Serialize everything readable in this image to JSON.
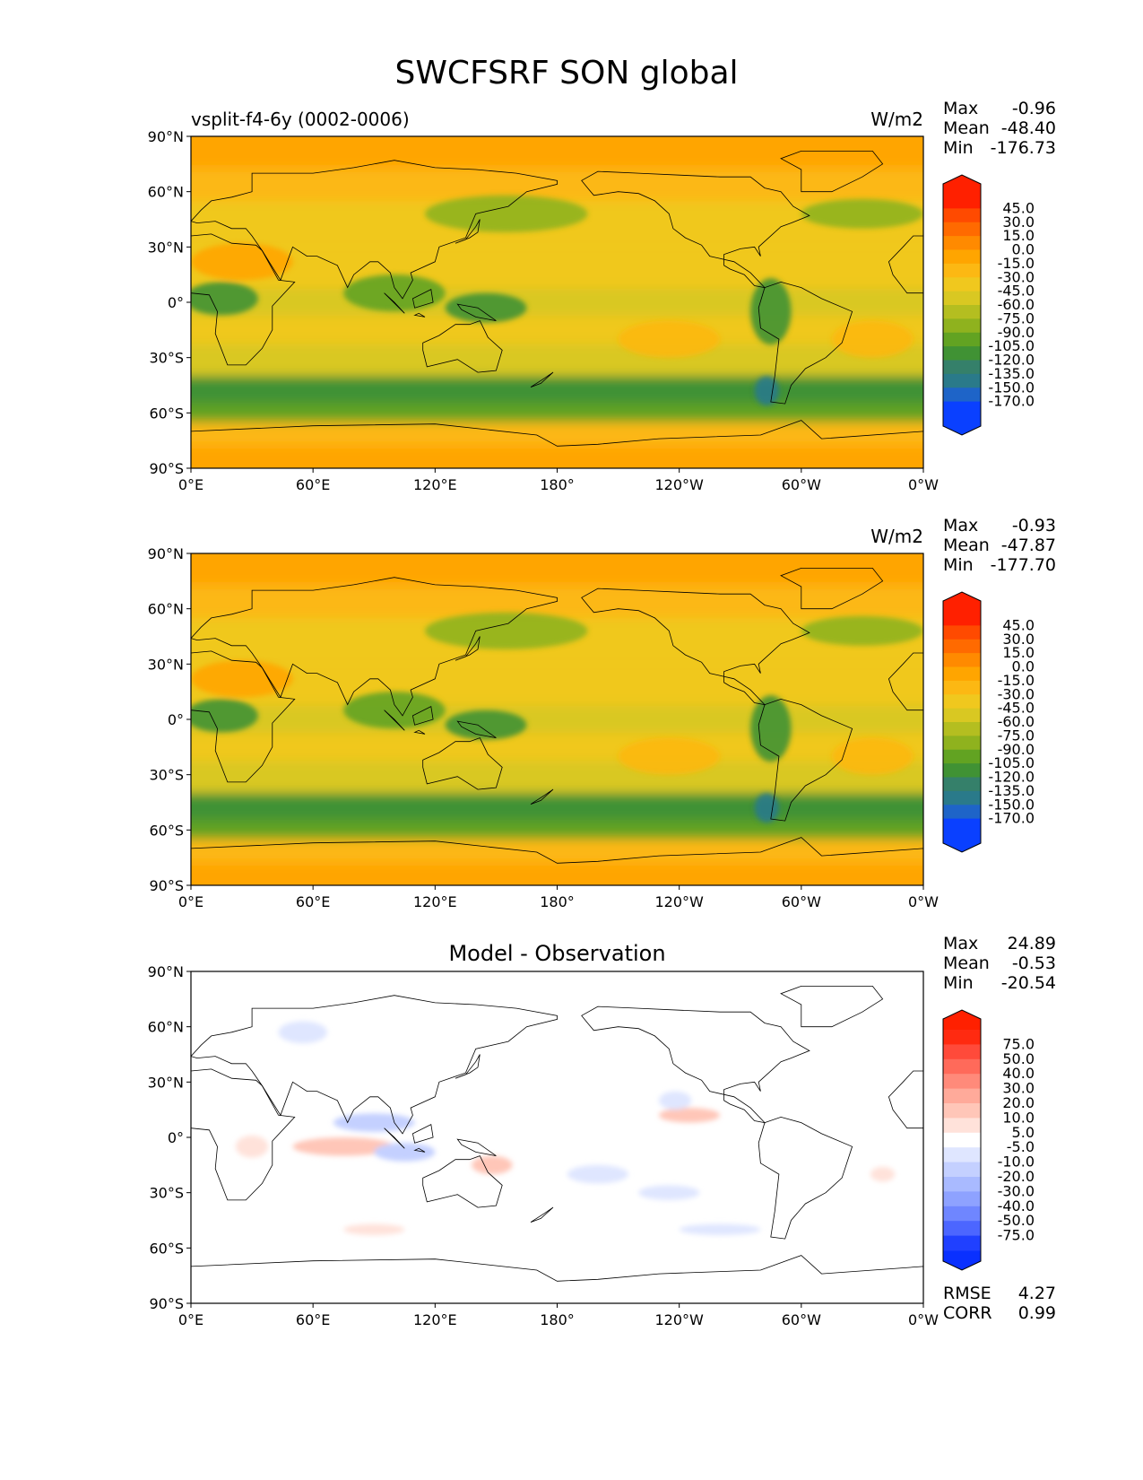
{
  "suptitle": "SWCFSRF SON global",
  "x_ticks": [
    "0°E",
    "60°E",
    "120°E",
    "180°",
    "120°W",
    "60°W",
    "0°W"
  ],
  "y_ticks": [
    "90°N",
    "60°N",
    "30°N",
    "0°",
    "30°S",
    "60°S",
    "90°S"
  ],
  "panels": [
    {
      "title_left": "vsplit-f4-6y (0002-0006)",
      "title_center": "",
      "units": "W/m2",
      "stats": [
        {
          "label": "Max",
          "value": "-0.96"
        },
        {
          "label": "Mean",
          "value": "-48.40"
        },
        {
          "label": "Min",
          "value": "-176.73"
        }
      ],
      "colorbar_labels": [
        "45.0",
        "30.0",
        "15.0",
        "0.0",
        "-15.0",
        "-30.0",
        "-45.0",
        "-60.0",
        "-75.0",
        "-90.0",
        "-105.0",
        "-120.0",
        "-135.0",
        "-150.0",
        "-170.0"
      ],
      "colorbar_colors": [
        "#ff2000",
        "#ff4a00",
        "#ff6a00",
        "#ff8a00",
        "#ffa500",
        "#fcb813",
        "#f0c81e",
        "#d9c822",
        "#b4be20",
        "#8fb21e",
        "#62a322",
        "#409234",
        "#35806a",
        "#2a7a8a",
        "#1e64c8",
        "#0a40ff"
      ],
      "extend_colors": {
        "top": "#ff2000",
        "bottom": "#0a40ff"
      }
    },
    {
      "title_left": "",
      "title_center": "",
      "units": "W/m2",
      "stats": [
        {
          "label": "Max",
          "value": "-0.93"
        },
        {
          "label": "Mean",
          "value": "-47.87"
        },
        {
          "label": "Min",
          "value": "-177.70"
        }
      ],
      "colorbar_labels": [
        "45.0",
        "30.0",
        "15.0",
        "0.0",
        "-15.0",
        "-30.0",
        "-45.0",
        "-60.0",
        "-75.0",
        "-90.0",
        "-105.0",
        "-120.0",
        "-135.0",
        "-150.0",
        "-170.0"
      ],
      "colorbar_colors": [
        "#ff2000",
        "#ff4a00",
        "#ff6a00",
        "#ff8a00",
        "#ffa500",
        "#fcb813",
        "#f0c81e",
        "#d9c822",
        "#b4be20",
        "#8fb21e",
        "#62a322",
        "#409234",
        "#35806a",
        "#2a7a8a",
        "#1e64c8",
        "#0a40ff"
      ],
      "extend_colors": {
        "top": "#ff2000",
        "bottom": "#0a40ff"
      }
    },
    {
      "title_left": "",
      "title_center": "Model - Observation",
      "units": "",
      "stats": [
        {
          "label": "Max",
          "value": "24.89"
        },
        {
          "label": "Mean",
          "value": "-0.53"
        },
        {
          "label": "Min",
          "value": "-20.54"
        }
      ],
      "extra_stats": [
        {
          "label": "RMSE",
          "value": "4.27"
        },
        {
          "label": "CORR",
          "value": "0.99"
        }
      ],
      "colorbar_labels": [
        "75.0",
        "50.0",
        "40.0",
        "30.0",
        "20.0",
        "10.0",
        "5.0",
        "-5.0",
        "-10.0",
        "-20.0",
        "-30.0",
        "-40.0",
        "-50.0",
        "-75.0"
      ],
      "colorbar_colors": [
        "#ff2a10",
        "#ff4a3a",
        "#ff6a5a",
        "#ff8a7a",
        "#ffaa9a",
        "#ffc6b8",
        "#ffe2da",
        "#ffffff",
        "#dfe6ff",
        "#c4d0ff",
        "#a9baff",
        "#8ea2ff",
        "#6f86ff",
        "#4c66ff",
        "#2040ff"
      ],
      "extend_colors": {
        "top": "#ff2000",
        "bottom": "#0a30ff"
      }
    }
  ],
  "chart_data": [
    {
      "type": "heatmap",
      "subtype": "global lat-lon filled contour map",
      "title": "vsplit-f4-6y (0002-0006)",
      "units": "W/m2",
      "xlim": [
        0,
        360
      ],
      "ylim": [
        -90,
        90
      ],
      "stats": {
        "max": -0.96,
        "mean": -48.4,
        "min": -176.73
      },
      "contour_levels": [
        -170,
        -150,
        -135,
        -120,
        -105,
        -90,
        -75,
        -60,
        -45,
        -30,
        -15,
        0,
        15,
        30,
        45
      ],
      "lat_band_values": [
        {
          "lat": 80,
          "value": -10
        },
        {
          "lat": 65,
          "value": -25
        },
        {
          "lat": 45,
          "value": -40
        },
        {
          "lat": 15,
          "value": -45
        },
        {
          "lat": 0,
          "value": -60
        },
        {
          "lat": -15,
          "value": -45
        },
        {
          "lat": -30,
          "value": -55
        },
        {
          "lat": -50,
          "value": -110
        },
        {
          "lat": -60,
          "value": -105
        },
        {
          "lat": -70,
          "value": -20
        },
        {
          "lat": -85,
          "value": -5
        }
      ]
    },
    {
      "type": "heatmap",
      "subtype": "global lat-lon filled contour map",
      "title": "",
      "units": "W/m2",
      "xlim": [
        0,
        360
      ],
      "ylim": [
        -90,
        90
      ],
      "stats": {
        "max": -0.93,
        "mean": -47.87,
        "min": -177.7
      },
      "contour_levels": [
        -170,
        -150,
        -135,
        -120,
        -105,
        -90,
        -75,
        -60,
        -45,
        -30,
        -15,
        0,
        15,
        30,
        45
      ],
      "lat_band_values": [
        {
          "lat": 80,
          "value": -10
        },
        {
          "lat": 65,
          "value": -25
        },
        {
          "lat": 45,
          "value": -40
        },
        {
          "lat": 15,
          "value": -45
        },
        {
          "lat": 0,
          "value": -60
        },
        {
          "lat": -15,
          "value": -45
        },
        {
          "lat": -30,
          "value": -55
        },
        {
          "lat": -50,
          "value": -110
        },
        {
          "lat": -60,
          "value": -100
        },
        {
          "lat": -70,
          "value": -20
        },
        {
          "lat": -85,
          "value": -5
        }
      ]
    },
    {
      "type": "heatmap",
      "subtype": "global lat-lon filled contour map (difference)",
      "title": "Model - Observation",
      "xlim": [
        0,
        360
      ],
      "ylim": [
        -90,
        90
      ],
      "stats": {
        "max": 24.89,
        "mean": -0.53,
        "min": -20.54,
        "rmse": 4.27,
        "corr": 0.99
      },
      "contour_levels": [
        -75,
        -50,
        -40,
        -30,
        -20,
        -10,
        -5,
        5,
        10,
        20,
        30,
        40,
        50,
        75
      ]
    }
  ]
}
